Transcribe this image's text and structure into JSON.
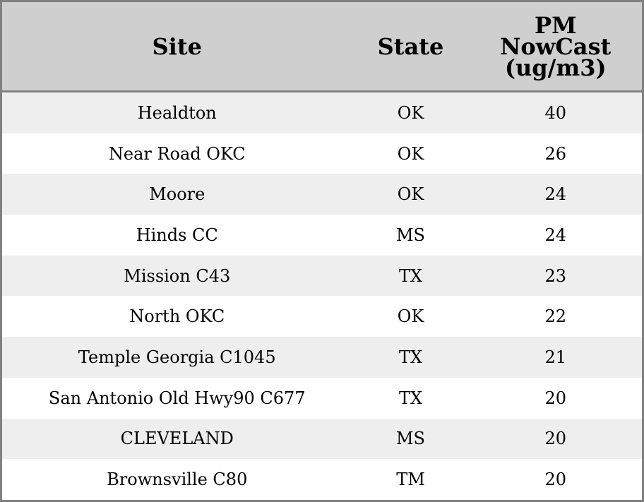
{
  "headers": [
    "Site",
    "State",
    "PM NowCast (ug/m3)"
  ],
  "rows": [
    [
      "Healdton",
      "OK",
      "40"
    ],
    [
      "Near Road OKC",
      "OK",
      "26"
    ],
    [
      "Moore",
      "OK",
      "24"
    ],
    [
      "Hinds CC",
      "MS",
      "24"
    ],
    [
      "Mission C43",
      "TX",
      "23"
    ],
    [
      "North OKC",
      "OK",
      "22"
    ],
    [
      "Temple Georgia C1045",
      "TX",
      "21"
    ],
    [
      "San Antonio Old Hwy90 C677",
      "TX",
      "20"
    ],
    [
      "CLEVELAND",
      "MS",
      "20"
    ],
    [
      "Brownsville C80",
      "TM",
      "20"
    ]
  ],
  "colors": {
    "header_bg": "#cfcfcf",
    "stripe": "#eeeeee",
    "border": "#808080"
  }
}
